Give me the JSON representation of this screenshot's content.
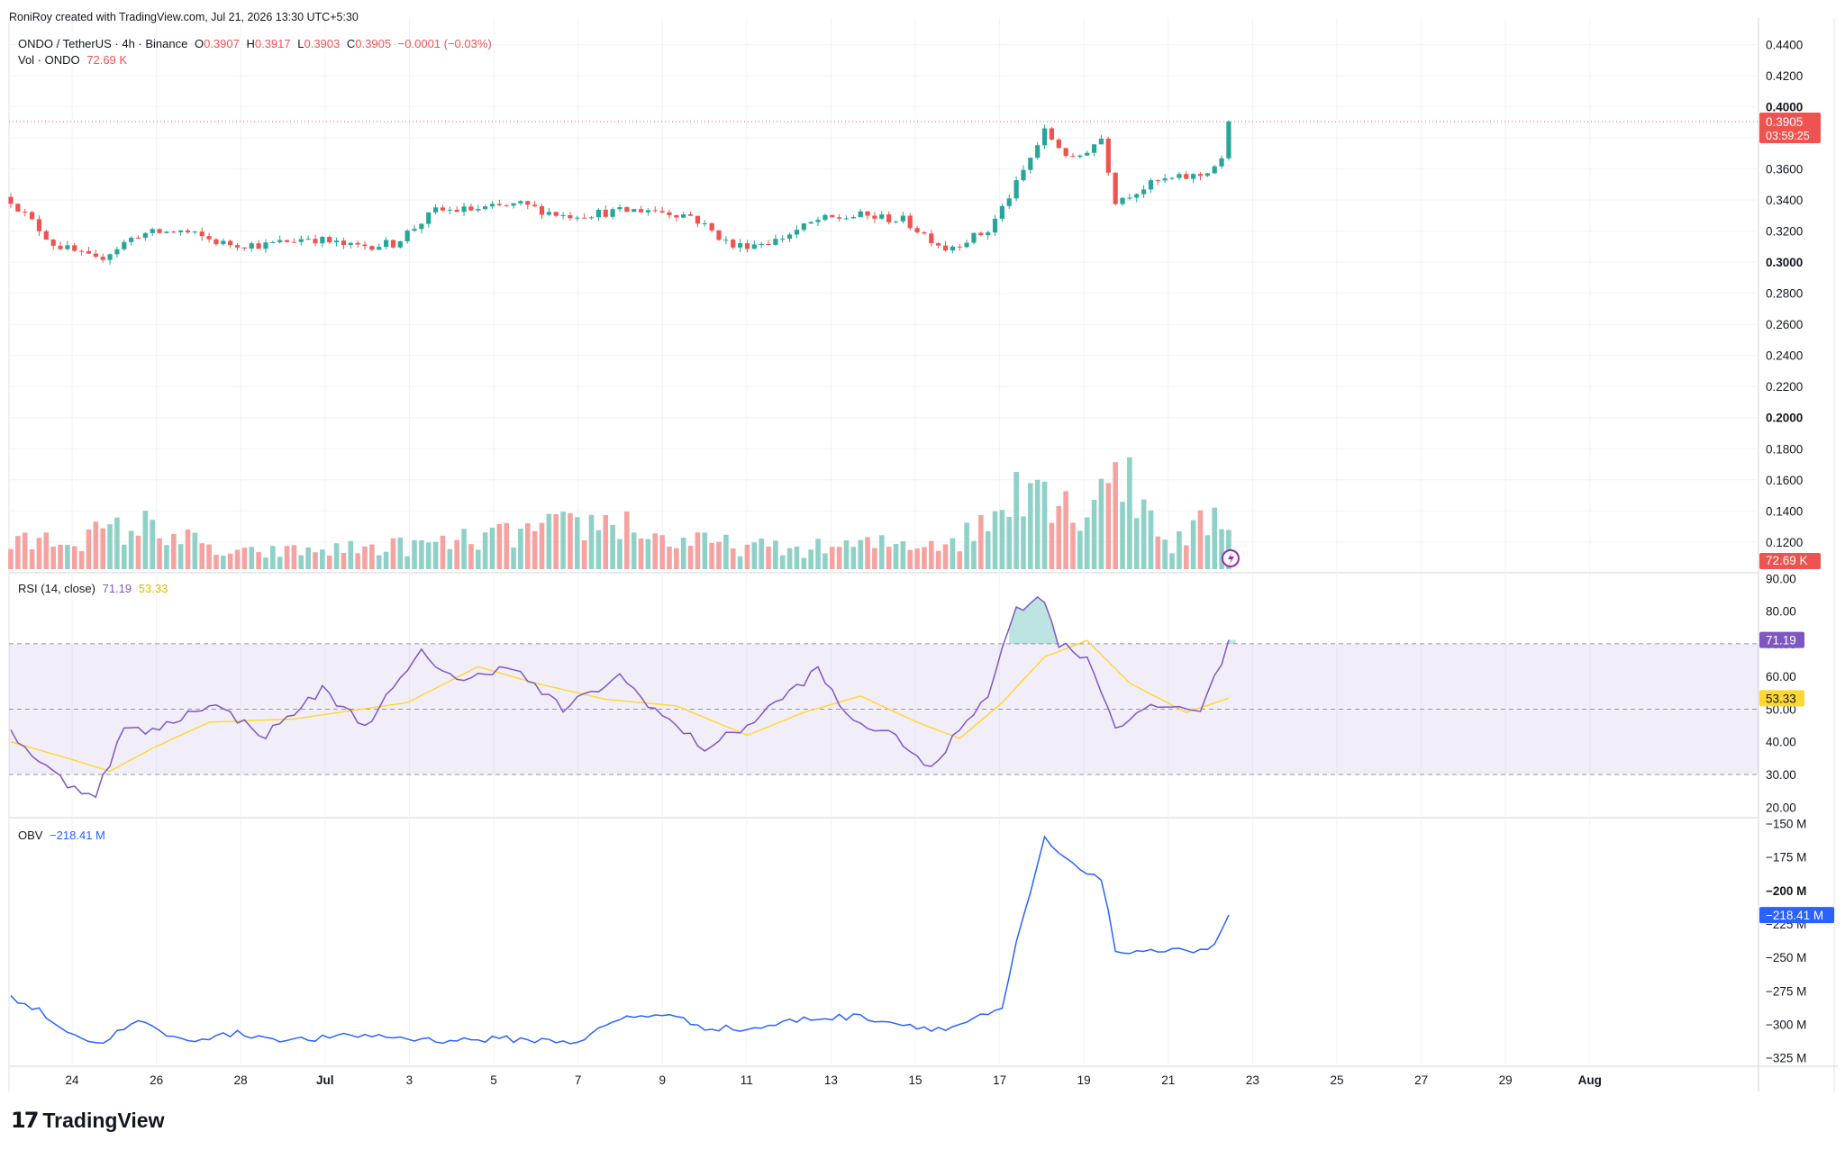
{
  "attribution": "RoniRoy created with TradingView.com, Jul 21, 2026 13:30 UTC+5:30",
  "brand": {
    "mark": "17",
    "name": "TradingView"
  },
  "main_legend": {
    "symbol": "ONDO / TetherUS · 4h · Binance",
    "o_label": "O",
    "o_value": "0.3907",
    "h_label": "H",
    "h_value": "0.3917",
    "l_label": "L",
    "l_value": "0.3903",
    "c_label": "C",
    "c_value": "0.3905",
    "change": "−0.0001 (−0.03%)",
    "vol_label": "Vol · ONDO",
    "vol_value": "72.69 K"
  },
  "rsi_legend": {
    "label": "RSI (14, close)",
    "rsi_value": "71.19",
    "ma_value": "53.33"
  },
  "obv_legend": {
    "label": "OBV",
    "value": "−218.41 M"
  },
  "colors": {
    "up": "#26a69a",
    "down": "#ef5350",
    "up_vol": "#8fd1c7",
    "down_vol": "#f5a3a1",
    "rsi": "#7e57c2",
    "rsi_ma": "#fdd835",
    "obv": "#2962ff",
    "grid": "#f0f3fa",
    "axis_text": "#131722"
  },
  "chart_data": [
    {
      "type": "candlestick",
      "title": "ONDO / TetherUS · 4h · Binance",
      "y_ticks": [
        "0.4400",
        "0.4200",
        "0.4000",
        "0.3800",
        "0.3600",
        "0.3400",
        "0.3200",
        "0.3000",
        "0.2800",
        "0.2600",
        "0.2400",
        "0.2200",
        "0.2000",
        "0.1800",
        "0.1600",
        "0.1400",
        "0.1200"
      ],
      "ylim": [
        0.1025,
        0.4525
      ],
      "x_ticks": [
        "24",
        "26",
        "28",
        "Jul",
        "3",
        "5",
        "7",
        "9",
        "11",
        "13",
        "15",
        "17",
        "19",
        "21",
        "23",
        "25",
        "27",
        "29",
        "Aug"
      ],
      "last_price_label": "0.3905",
      "countdown_label": "03:59:25",
      "keypoints": [
        {
          "bar": 0,
          "close": 0.34
        },
        {
          "bar": 6,
          "close": 0.312
        },
        {
          "bar": 12,
          "close": 0.301
        },
        {
          "bar": 18,
          "close": 0.318
        },
        {
          "bar": 24,
          "close": 0.32
        },
        {
          "bar": 30,
          "close": 0.312
        },
        {
          "bar": 36,
          "close": 0.311
        },
        {
          "bar": 42,
          "close": 0.316
        },
        {
          "bar": 48,
          "close": 0.31
        },
        {
          "bar": 54,
          "close": 0.312
        },
        {
          "bar": 60,
          "close": 0.333
        },
        {
          "bar": 66,
          "close": 0.334
        },
        {
          "bar": 72,
          "close": 0.337
        },
        {
          "bar": 78,
          "close": 0.33
        },
        {
          "bar": 84,
          "close": 0.332
        },
        {
          "bar": 90,
          "close": 0.334
        },
        {
          "bar": 96,
          "close": 0.33
        },
        {
          "bar": 102,
          "close": 0.31
        },
        {
          "bar": 108,
          "close": 0.314
        },
        {
          "bar": 114,
          "close": 0.327
        },
        {
          "bar": 120,
          "close": 0.33
        },
        {
          "bar": 126,
          "close": 0.327
        },
        {
          "bar": 132,
          "close": 0.309
        },
        {
          "bar": 138,
          "close": 0.32
        },
        {
          "bar": 142,
          "close": 0.35
        },
        {
          "bar": 146,
          "close": 0.384
        },
        {
          "bar": 150,
          "close": 0.365
        },
        {
          "bar": 154,
          "close": 0.38
        },
        {
          "bar": 156,
          "close": 0.34
        },
        {
          "bar": 162,
          "close": 0.352
        },
        {
          "bar": 168,
          "close": 0.356
        },
        {
          "bar": 171,
          "close": 0.365
        },
        {
          "bar": 172,
          "close": 0.3905
        }
      ]
    },
    {
      "type": "bar",
      "title": "Vol · ONDO",
      "last_value_label": "72.69 K",
      "keypoints": [
        {
          "bar": 0,
          "v": 0.25
        },
        {
          "bar": 12,
          "v": 0.35
        },
        {
          "bar": 20,
          "v": 0.45
        },
        {
          "bar": 30,
          "v": 0.15
        },
        {
          "bar": 60,
          "v": 0.25
        },
        {
          "bar": 86,
          "v": 0.5
        },
        {
          "bar": 92,
          "v": 0.3
        },
        {
          "bar": 110,
          "v": 0.2
        },
        {
          "bar": 134,
          "v": 0.3
        },
        {
          "bar": 140,
          "v": 0.6
        },
        {
          "bar": 142,
          "v": 1.0
        },
        {
          "bar": 146,
          "v": 0.9
        },
        {
          "bar": 150,
          "v": 0.55
        },
        {
          "bar": 156,
          "v": 1.1
        },
        {
          "bar": 164,
          "v": 0.25
        },
        {
          "bar": 172,
          "v": 0.6
        }
      ]
    },
    {
      "type": "line",
      "title": "RSI (14, close)",
      "y_ticks": [
        "90.00",
        "80.00",
        "70.00",
        "60.00",
        "50.00",
        "40.00",
        "30.00",
        "20.00"
      ],
      "ylim": [
        17.6,
        91.2
      ],
      "band": [
        30,
        70
      ],
      "series": [
        {
          "name": "RSI",
          "last_value_label": "71.19",
          "keypoints": [
            {
              "bar": 0,
              "y": 43
            },
            {
              "bar": 4,
              "y": 34
            },
            {
              "bar": 8,
              "y": 27
            },
            {
              "bar": 12,
              "y": 24
            },
            {
              "bar": 16,
              "y": 44
            },
            {
              "bar": 20,
              "y": 43
            },
            {
              "bar": 28,
              "y": 52
            },
            {
              "bar": 36,
              "y": 42
            },
            {
              "bar": 44,
              "y": 56
            },
            {
              "bar": 50,
              "y": 45
            },
            {
              "bar": 58,
              "y": 67
            },
            {
              "bar": 64,
              "y": 58
            },
            {
              "bar": 70,
              "y": 64
            },
            {
              "bar": 78,
              "y": 50
            },
            {
              "bar": 86,
              "y": 60
            },
            {
              "bar": 92,
              "y": 48
            },
            {
              "bar": 98,
              "y": 38
            },
            {
              "bar": 104,
              "y": 45
            },
            {
              "bar": 114,
              "y": 62
            },
            {
              "bar": 118,
              "y": 48
            },
            {
              "bar": 126,
              "y": 40
            },
            {
              "bar": 130,
              "y": 31
            },
            {
              "bar": 134,
              "y": 44
            },
            {
              "bar": 138,
              "y": 55
            },
            {
              "bar": 142,
              "y": 81
            },
            {
              "bar": 146,
              "y": 84
            },
            {
              "bar": 148,
              "y": 70
            },
            {
              "bar": 152,
              "y": 66
            },
            {
              "bar": 156,
              "y": 45
            },
            {
              "bar": 162,
              "y": 51
            },
            {
              "bar": 168,
              "y": 50
            },
            {
              "bar": 170,
              "y": 59
            },
            {
              "bar": 172,
              "y": 71.19
            }
          ]
        },
        {
          "name": "RSI-based MA",
          "last_value_label": "53.33",
          "keypoints": [
            {
              "bar": 0,
              "y": 40
            },
            {
              "bar": 8,
              "y": 35
            },
            {
              "bar": 14,
              "y": 31
            },
            {
              "bar": 20,
              "y": 38
            },
            {
              "bar": 28,
              "y": 46
            },
            {
              "bar": 40,
              "y": 47
            },
            {
              "bar": 56,
              "y": 52
            },
            {
              "bar": 66,
              "y": 63
            },
            {
              "bar": 74,
              "y": 58
            },
            {
              "bar": 84,
              "y": 53
            },
            {
              "bar": 94,
              "y": 51
            },
            {
              "bar": 104,
              "y": 42
            },
            {
              "bar": 112,
              "y": 49
            },
            {
              "bar": 120,
              "y": 54
            },
            {
              "bar": 128,
              "y": 46
            },
            {
              "bar": 134,
              "y": 41
            },
            {
              "bar": 140,
              "y": 52
            },
            {
              "bar": 146,
              "y": 66
            },
            {
              "bar": 152,
              "y": 71
            },
            {
              "bar": 158,
              "y": 58
            },
            {
              "bar": 166,
              "y": 49
            },
            {
              "bar": 172,
              "y": 53.33
            }
          ]
        }
      ]
    },
    {
      "type": "line",
      "title": "OBV",
      "y_ticks": [
        "−150 M",
        "−175 M",
        "−200 M",
        "−225 M",
        "−250 M",
        "−275 M",
        "−300 M",
        "−325 M"
      ],
      "ylim": [
        -330,
        -147
      ],
      "series": [
        {
          "name": "OBV",
          "last_value_label": "−218.41 M",
          "keypoints": [
            {
              "bar": 0,
              "y": -280
            },
            {
              "bar": 4,
              "y": -290
            },
            {
              "bar": 8,
              "y": -305
            },
            {
              "bar": 12,
              "y": -315
            },
            {
              "bar": 18,
              "y": -298
            },
            {
              "bar": 24,
              "y": -312
            },
            {
              "bar": 32,
              "y": -307
            },
            {
              "bar": 40,
              "y": -312
            },
            {
              "bar": 50,
              "y": -308
            },
            {
              "bar": 60,
              "y": -312
            },
            {
              "bar": 70,
              "y": -311
            },
            {
              "bar": 80,
              "y": -313
            },
            {
              "bar": 86,
              "y": -296
            },
            {
              "bar": 92,
              "y": -292
            },
            {
              "bar": 98,
              "y": -302
            },
            {
              "bar": 104,
              "y": -304
            },
            {
              "bar": 112,
              "y": -296
            },
            {
              "bar": 120,
              "y": -294
            },
            {
              "bar": 126,
              "y": -300
            },
            {
              "bar": 132,
              "y": -304
            },
            {
              "bar": 136,
              "y": -296
            },
            {
              "bar": 140,
              "y": -290
            },
            {
              "bar": 142,
              "y": -240
            },
            {
              "bar": 146,
              "y": -162
            },
            {
              "bar": 150,
              "y": -182
            },
            {
              "bar": 154,
              "y": -190
            },
            {
              "bar": 156,
              "y": -245
            },
            {
              "bar": 160,
              "y": -248
            },
            {
              "bar": 164,
              "y": -242
            },
            {
              "bar": 168,
              "y": -246
            },
            {
              "bar": 170,
              "y": -240
            },
            {
              "bar": 172,
              "y": -218.41
            }
          ]
        }
      ]
    }
  ]
}
